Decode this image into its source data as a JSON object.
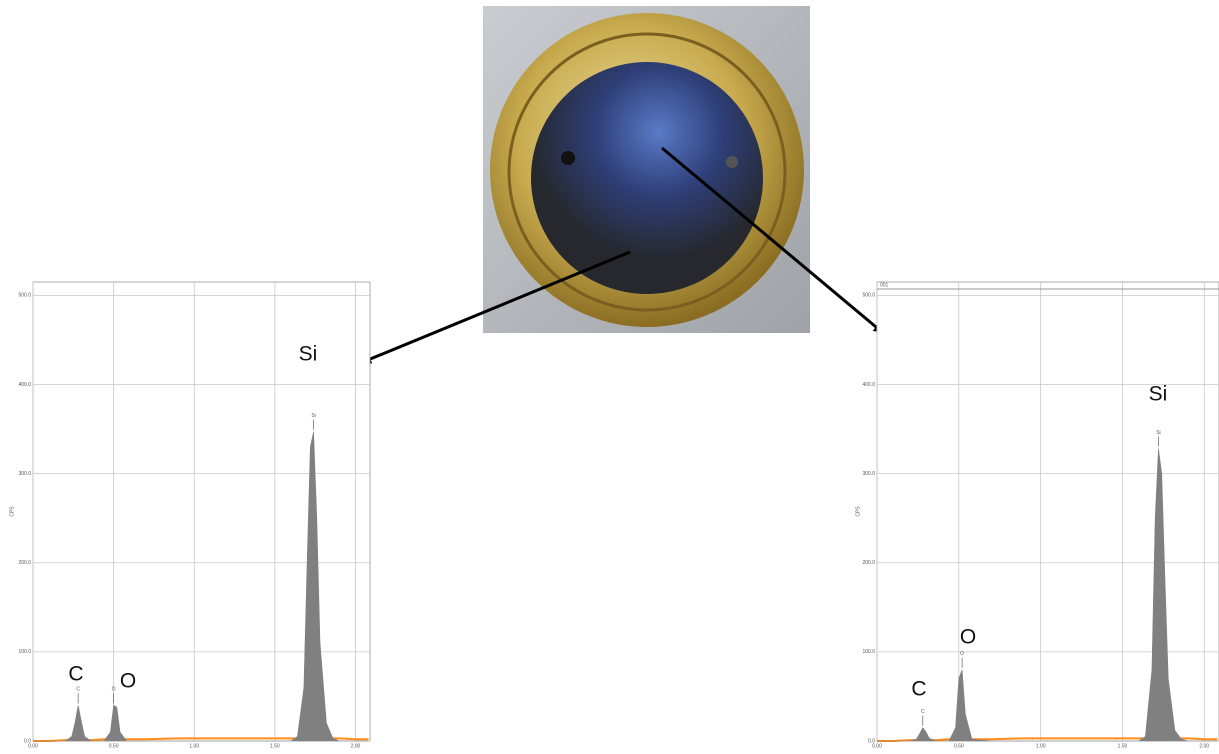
{
  "chart_data": [
    {
      "type": "area",
      "y_label": "CPS",
      "x": [
        0.0,
        0.1,
        0.2,
        0.24,
        0.26,
        0.28,
        0.3,
        0.32,
        0.36,
        0.44,
        0.48,
        0.5,
        0.52,
        0.54,
        0.58,
        0.7,
        0.9,
        1.1,
        1.3,
        1.5,
        1.6,
        1.64,
        1.68,
        1.7,
        1.72,
        1.74,
        1.76,
        1.78,
        1.82,
        1.86,
        1.9,
        2.0,
        2.08
      ],
      "series": [
        {
          "color": "#ff8c1a",
          "style": "line",
          "values": [
            0,
            0,
            1,
            1,
            1,
            1,
            1,
            1,
            1,
            2,
            2,
            2,
            2,
            2,
            2,
            2,
            3,
            3,
            3,
            3,
            3,
            3,
            3,
            3,
            3,
            3,
            3,
            3,
            3,
            3,
            3,
            2,
            2
          ]
        },
        {
          "color": "#808080",
          "style": "fill",
          "values": [
            0,
            0,
            0,
            5,
            20,
            40,
            22,
            5,
            0,
            0,
            10,
            40,
            38,
            10,
            0,
            0,
            0,
            0,
            0,
            0,
            0,
            5,
            60,
            200,
            330,
            347,
            250,
            110,
            20,
            3,
            0,
            0,
            0
          ]
        }
      ],
      "xlim": [
        0,
        2.09
      ],
      "ylim": [
        0,
        515
      ],
      "xticks": [
        {
          "value": 0,
          "label": "0.00"
        },
        {
          "value": 0.5,
          "label": "0.50"
        },
        {
          "value": 1,
          "label": "1.00"
        },
        {
          "value": 1.5,
          "label": "1.50"
        },
        {
          "value": 2,
          "label": "2.00"
        }
      ],
      "yticks": [
        {
          "value": 0,
          "label": "0.0"
        },
        {
          "value": 100,
          "label": "100.0"
        },
        {
          "value": 200,
          "label": "200.0"
        },
        {
          "value": 300,
          "label": "300.0"
        },
        {
          "value": 400,
          "label": "400.0"
        },
        {
          "value": 500,
          "label": "500.0"
        }
      ],
      "grid": true,
      "annotations": [
        "C",
        "O",
        "Si"
      ],
      "peak_labels": [
        "C",
        "O",
        "Si"
      ]
    },
    {
      "type": "area",
      "y_label": "CPS",
      "header": "001",
      "x": [
        0.0,
        0.1,
        0.2,
        0.24,
        0.26,
        0.28,
        0.3,
        0.32,
        0.36,
        0.44,
        0.48,
        0.5,
        0.52,
        0.54,
        0.58,
        0.7,
        0.9,
        1.1,
        1.3,
        1.5,
        1.6,
        1.64,
        1.68,
        1.7,
        1.72,
        1.74,
        1.76,
        1.78,
        1.82,
        1.86,
        1.9,
        2.0,
        2.08
      ],
      "series": [
        {
          "color": "#ff8c1a",
          "style": "line",
          "values": [
            0,
            0,
            1,
            1,
            1,
            1,
            1,
            1,
            1,
            2,
            2,
            2,
            2,
            2,
            2,
            2,
            3,
            3,
            3,
            3,
            3,
            3,
            3,
            3,
            3,
            3,
            3,
            3,
            3,
            3,
            3,
            2,
            2
          ]
        },
        {
          "color": "#808080",
          "style": "fill",
          "values": [
            0,
            0,
            0,
            2,
            8,
            15,
            10,
            3,
            0,
            0,
            15,
            70,
            80,
            30,
            2,
            0,
            0,
            0,
            0,
            0,
            0,
            5,
            80,
            250,
            328,
            300,
            180,
            70,
            12,
            2,
            0,
            0,
            0
          ]
        }
      ],
      "xlim": [
        0,
        2.09
      ],
      "ylim": [
        0,
        515
      ],
      "xticks": [
        {
          "value": 0,
          "label": "0.00"
        },
        {
          "value": 0.5,
          "label": "0.50"
        },
        {
          "value": 1,
          "label": "1.00"
        },
        {
          "value": 1.5,
          "label": "1.50"
        },
        {
          "value": 2,
          "label": "2.00"
        }
      ],
      "yticks": [
        {
          "value": 0,
          "label": "0.0"
        },
        {
          "value": 100,
          "label": "100.0"
        },
        {
          "value": 200,
          "label": "200.0"
        },
        {
          "value": 300,
          "label": "300.0"
        },
        {
          "value": 400,
          "label": "400.0"
        },
        {
          "value": 500,
          "label": "500.0"
        }
      ],
      "grid": true,
      "annotations": [
        "C",
        "O",
        "Si"
      ],
      "peak_labels": [
        "C",
        "O",
        "Si"
      ]
    }
  ]
}
